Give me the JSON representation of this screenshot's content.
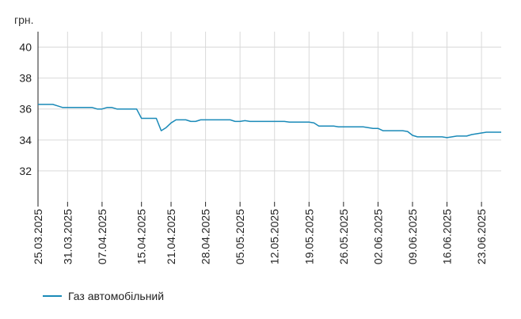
{
  "chart_data": {
    "type": "line",
    "ylabel": "грн.",
    "ylim": [
      30,
      41
    ],
    "yticks": [
      32,
      34,
      36,
      38,
      40
    ],
    "xlim": [
      "2025-03-25",
      "2025-06-27"
    ],
    "grid": true,
    "legend_position": "bottom-left",
    "xtick_labels": [
      "25.03.2025",
      "31.03.2025",
      "07.04.2025",
      "15.04.2025",
      "21.04.2025",
      "28.04.2025",
      "05.05.2025",
      "12.05.2025",
      "19.05.2025",
      "26.05.2025",
      "02.06.2025",
      "09.06.2025",
      "16.06.2025",
      "23.06.2025"
    ],
    "xtick_dates": [
      "2025-03-25",
      "2025-03-31",
      "2025-04-07",
      "2025-04-15",
      "2025-04-21",
      "2025-04-28",
      "2025-05-05",
      "2025-05-12",
      "2025-05-19",
      "2025-05-26",
      "2025-06-02",
      "2025-06-09",
      "2025-06-16",
      "2025-06-23"
    ],
    "series": [
      {
        "name": "Газ автомобільний",
        "color": "#1a8ab8",
        "x": [
          "2025-03-25",
          "2025-03-28",
          "2025-03-29",
          "2025-03-30",
          "2025-04-05",
          "2025-04-06",
          "2025-04-07",
          "2025-04-08",
          "2025-04-09",
          "2025-04-10",
          "2025-04-14",
          "2025-04-15",
          "2025-04-18",
          "2025-04-19",
          "2025-04-20",
          "2025-04-21",
          "2025-04-22",
          "2025-04-24",
          "2025-04-25",
          "2025-04-26",
          "2025-04-27",
          "2025-05-03",
          "2025-05-04",
          "2025-05-05",
          "2025-05-06",
          "2025-05-07",
          "2025-05-14",
          "2025-05-15",
          "2025-05-19",
          "2025-05-20",
          "2025-05-21",
          "2025-05-24",
          "2025-05-25",
          "2025-05-30",
          "2025-05-31",
          "2025-06-01",
          "2025-06-02",
          "2025-06-03",
          "2025-06-05",
          "2025-06-07",
          "2025-06-08",
          "2025-06-09",
          "2025-06-10",
          "2025-06-11",
          "2025-06-15",
          "2025-06-16",
          "2025-06-17",
          "2025-06-18",
          "2025-06-20",
          "2025-06-21",
          "2025-06-22",
          "2025-06-23",
          "2025-06-24",
          "2025-06-27"
        ],
        "y": [
          36.3,
          36.3,
          36.2,
          36.1,
          36.1,
          36.0,
          36.0,
          36.1,
          36.1,
          36.0,
          36.0,
          35.4,
          35.4,
          34.6,
          34.8,
          35.1,
          35.3,
          35.3,
          35.2,
          35.2,
          35.3,
          35.3,
          35.2,
          35.2,
          35.25,
          35.2,
          35.2,
          35.15,
          35.15,
          35.1,
          34.9,
          34.9,
          34.85,
          34.85,
          34.8,
          34.75,
          34.75,
          34.6,
          34.6,
          34.6,
          34.55,
          34.3,
          34.2,
          34.2,
          34.2,
          34.15,
          34.2,
          34.25,
          34.25,
          34.35,
          34.4,
          34.45,
          34.5,
          34.5
        ]
      }
    ]
  }
}
